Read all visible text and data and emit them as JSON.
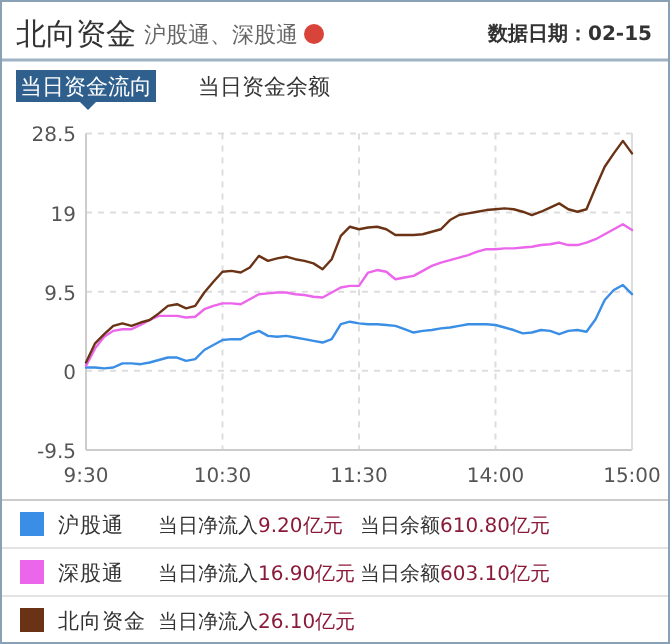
{
  "chart_data": {
    "type": "line",
    "title": "北向资金",
    "subtitle": "沪股通、深股通",
    "annotations": [
      "数据日期：02-15",
      "当日资金流向",
      "当日资金余额",
      "当日净流入9.20亿元",
      "当日余额610.80亿元",
      "当日净流入16.90亿元",
      "当日余额603.10亿元",
      "当日净流入26.10亿元"
    ],
    "categories": [
      "9:30",
      null,
      null,
      null,
      null,
      null,
      null,
      null,
      null,
      null,
      null,
      null,
      null,
      null,
      null,
      "10:30",
      null,
      null,
      null,
      null,
      null,
      null,
      null,
      null,
      null,
      null,
      null,
      null,
      null,
      null,
      "11:30",
      null,
      null,
      null,
      null,
      null,
      null,
      null,
      null,
      null,
      null,
      null,
      null,
      null,
      null,
      "14:00",
      null,
      null,
      null,
      null,
      null,
      null,
      null,
      null,
      null,
      null,
      null,
      null,
      null,
      null,
      "15:00"
    ],
    "ylim": [
      -9.5,
      28.5
    ],
    "yticks": [
      -9.5,
      0,
      9.5,
      19,
      28.5
    ],
    "grid": true,
    "legend": "bottom",
    "marker": "none",
    "line_style": "solid",
    "series": [
      {
        "name": "沪股通",
        "color": "#3a8ee6",
        "values": [
          0.4,
          0.4,
          0.3,
          0.4,
          0.9,
          0.9,
          0.8,
          1.0,
          1.3,
          1.6,
          1.6,
          1.2,
          1.4,
          2.5,
          3.1,
          3.7,
          3.8,
          3.8,
          4.4,
          4.8,
          4.2,
          4.1,
          4.2,
          4.0,
          3.8,
          3.6,
          3.4,
          3.8,
          5.6,
          5.9,
          5.7,
          5.6,
          5.6,
          5.5,
          5.4,
          5.0,
          4.6,
          4.8,
          4.9,
          5.1,
          5.2,
          5.4,
          5.6,
          5.6,
          5.6,
          5.5,
          5.2,
          4.9,
          4.5,
          4.6,
          4.9,
          4.8,
          4.4,
          4.8,
          4.9,
          4.7,
          6.2,
          8.5,
          9.7,
          10.3,
          9.2
        ]
      },
      {
        "name": "深股通",
        "color": "#ec66ec",
        "values": [
          0.6,
          2.7,
          4.1,
          4.8,
          5.0,
          5.0,
          5.5,
          6.1,
          6.6,
          6.6,
          6.6,
          6.4,
          6.5,
          7.4,
          7.8,
          8.1,
          8.1,
          8.0,
          8.6,
          9.2,
          9.3,
          9.4,
          9.4,
          9.2,
          9.1,
          8.9,
          8.8,
          9.4,
          10.0,
          10.2,
          10.2,
          11.8,
          12.1,
          11.9,
          11.0,
          11.2,
          11.4,
          12.0,
          12.6,
          13.0,
          13.3,
          13.6,
          13.9,
          14.3,
          14.6,
          14.6,
          14.7,
          14.7,
          14.8,
          14.9,
          15.1,
          15.2,
          15.4,
          15.1,
          15.1,
          15.4,
          15.8,
          16.4,
          17.0,
          17.6,
          16.9
        ]
      },
      {
        "name": "北向资金",
        "color": "#6b3315",
        "values": [
          1.0,
          3.3,
          4.4,
          5.4,
          5.7,
          5.4,
          5.8,
          6.1,
          6.9,
          7.8,
          8.0,
          7.5,
          7.8,
          9.4,
          10.7,
          11.9,
          12.0,
          11.8,
          12.4,
          13.8,
          13.2,
          13.5,
          13.7,
          13.4,
          13.2,
          12.9,
          12.2,
          13.4,
          16.2,
          17.3,
          17.0,
          17.2,
          17.3,
          17.0,
          16.3,
          16.3,
          16.3,
          16.4,
          16.7,
          17.0,
          18.1,
          18.7,
          18.9,
          19.1,
          19.3,
          19.4,
          19.5,
          19.4,
          19.1,
          18.7,
          19.1,
          19.6,
          20.1,
          19.4,
          19.1,
          19.4,
          22.0,
          24.5,
          26.1,
          27.6,
          26.1
        ]
      }
    ]
  }
}
